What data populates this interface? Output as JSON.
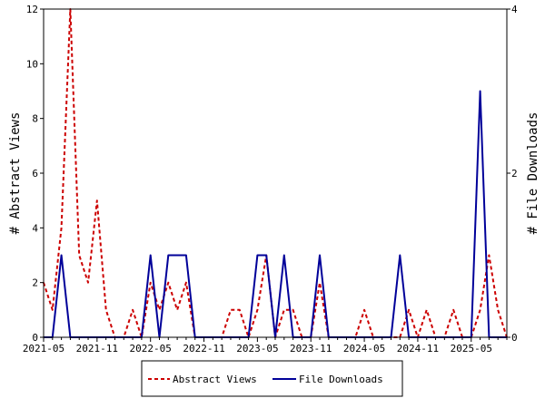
{
  "chart_data": {
    "type": "line",
    "x_start": "2021-05",
    "x_tick_labels": [
      "2021-05",
      "2021-11",
      "2022-05",
      "2022-11",
      "2023-05",
      "2023-11",
      "2024-05",
      "2024-11",
      "2025-05"
    ],
    "y_left": {
      "label": "# Abstract Views",
      "lim": [
        0,
        12
      ],
      "ticks": [
        0,
        2,
        4,
        6,
        8,
        10,
        12
      ]
    },
    "y_right": {
      "label": "# File Downloads",
      "lim": [
        0,
        4
      ],
      "ticks": [
        0,
        2,
        4
      ]
    },
    "grid": false,
    "legend_position": "bottom",
    "series": [
      {
        "name": "Abstract Views",
        "axis": "left",
        "color": "#cc0000",
        "dash": true,
        "values": [
          2,
          1,
          4,
          12,
          3,
          2,
          5,
          1,
          0,
          0,
          1,
          0,
          2,
          1,
          2,
          1,
          2,
          0,
          0,
          0,
          0,
          1,
          1,
          0,
          1,
          3,
          0,
          1,
          1,
          0,
          0,
          2,
          0,
          0,
          0,
          0,
          1,
          0,
          0,
          0,
          0,
          1,
          0,
          1,
          0,
          0,
          1,
          0,
          0,
          1,
          3,
          1,
          0
        ]
      },
      {
        "name": "File Downloads",
        "axis": "right",
        "color": "#000099",
        "dash": false,
        "values": [
          0,
          0,
          1,
          0,
          0,
          0,
          0,
          0,
          0,
          0,
          0,
          0,
          1,
          0,
          1,
          1,
          1,
          0,
          0,
          0,
          0,
          0,
          0,
          0,
          1,
          1,
          0,
          1,
          0,
          0,
          0,
          1,
          0,
          0,
          0,
          0,
          0,
          0,
          0,
          0,
          1,
          0,
          0,
          0,
          0,
          0,
          0,
          0,
          0,
          3,
          0,
          0,
          0
        ]
      }
    ]
  }
}
